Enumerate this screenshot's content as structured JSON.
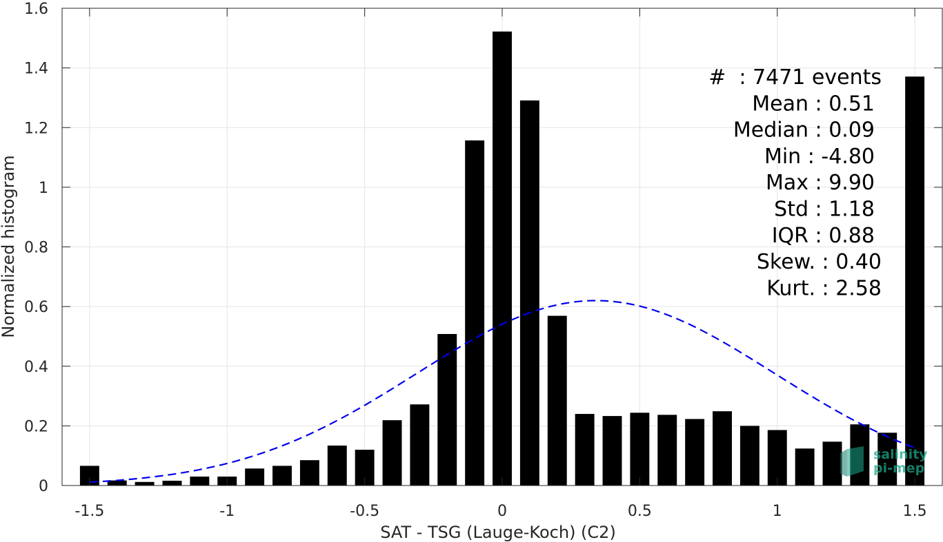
{
  "chart_data": {
    "type": "bar",
    "xlabel": "SAT - TSG (Lauge-Koch) (C2)",
    "ylabel": "Normalized histogram",
    "xlim": [
      -1.6,
      1.6
    ],
    "ylim": [
      0,
      1.6
    ],
    "grid": true,
    "xticks": [
      {
        "value": -1.5,
        "label": "-1.5"
      },
      {
        "value": -1,
        "label": "-1"
      },
      {
        "value": -0.5,
        "label": "-0.5"
      },
      {
        "value": 0,
        "label": "0"
      },
      {
        "value": 0.5,
        "label": "0.5"
      },
      {
        "value": 1,
        "label": "1"
      },
      {
        "value": 1.5,
        "label": "1.5"
      }
    ],
    "yticks": [
      {
        "value": 0,
        "label": "0"
      },
      {
        "value": 0.2,
        "label": "0.2"
      },
      {
        "value": 0.4,
        "label": "0.4"
      },
      {
        "value": 0.6,
        "label": "0.6"
      },
      {
        "value": 0.8,
        "label": "0.8"
      },
      {
        "value": 1,
        "label": "1"
      },
      {
        "value": 1.2,
        "label": "1.2"
      },
      {
        "value": 1.4,
        "label": "1.4"
      },
      {
        "value": 1.6,
        "label": "1.6"
      }
    ],
    "bars": {
      "color": "#000000",
      "width": 0.07,
      "x": [
        -1.5,
        -1.4,
        -1.3,
        -1.2,
        -1.1,
        -1.0,
        -0.9,
        -0.8,
        -0.7,
        -0.6,
        -0.5,
        -0.4,
        -0.3,
        -0.2,
        -0.1,
        0.0,
        0.1,
        0.2,
        0.3,
        0.4,
        0.5,
        0.6,
        0.7,
        0.8,
        0.9,
        1.0,
        1.1,
        1.2,
        1.3,
        1.4,
        1.5
      ],
      "values": [
        0.066,
        0.017,
        0.012,
        0.016,
        0.03,
        0.03,
        0.057,
        0.066,
        0.085,
        0.134,
        0.12,
        0.219,
        0.272,
        0.508,
        1.157,
        1.522,
        1.291,
        0.569,
        0.24,
        0.233,
        0.244,
        0.237,
        0.223,
        0.249,
        0.2,
        0.186,
        0.124,
        0.147,
        0.205,
        0.177,
        1.371
      ]
    },
    "fit_curve": {
      "style": "dashed",
      "color": "#0000ee",
      "mean": 0.34,
      "std": 0.65,
      "peak": 0.62,
      "x_range": [
        -1.5,
        1.5
      ]
    },
    "stats_lines": [
      "#  : 7471 events",
      "Mean : 0.51",
      "Median : 0.09",
      "Min : -4.80",
      "Max : 9.90",
      "Std : 1.18",
      "IQR : 0.88",
      "Skew. : 0.40",
      "Kurt. : 2.58"
    ],
    "logo": {
      "line1": "salinity",
      "line2": "pi-mep",
      "color": "#1aa88a"
    }
  }
}
